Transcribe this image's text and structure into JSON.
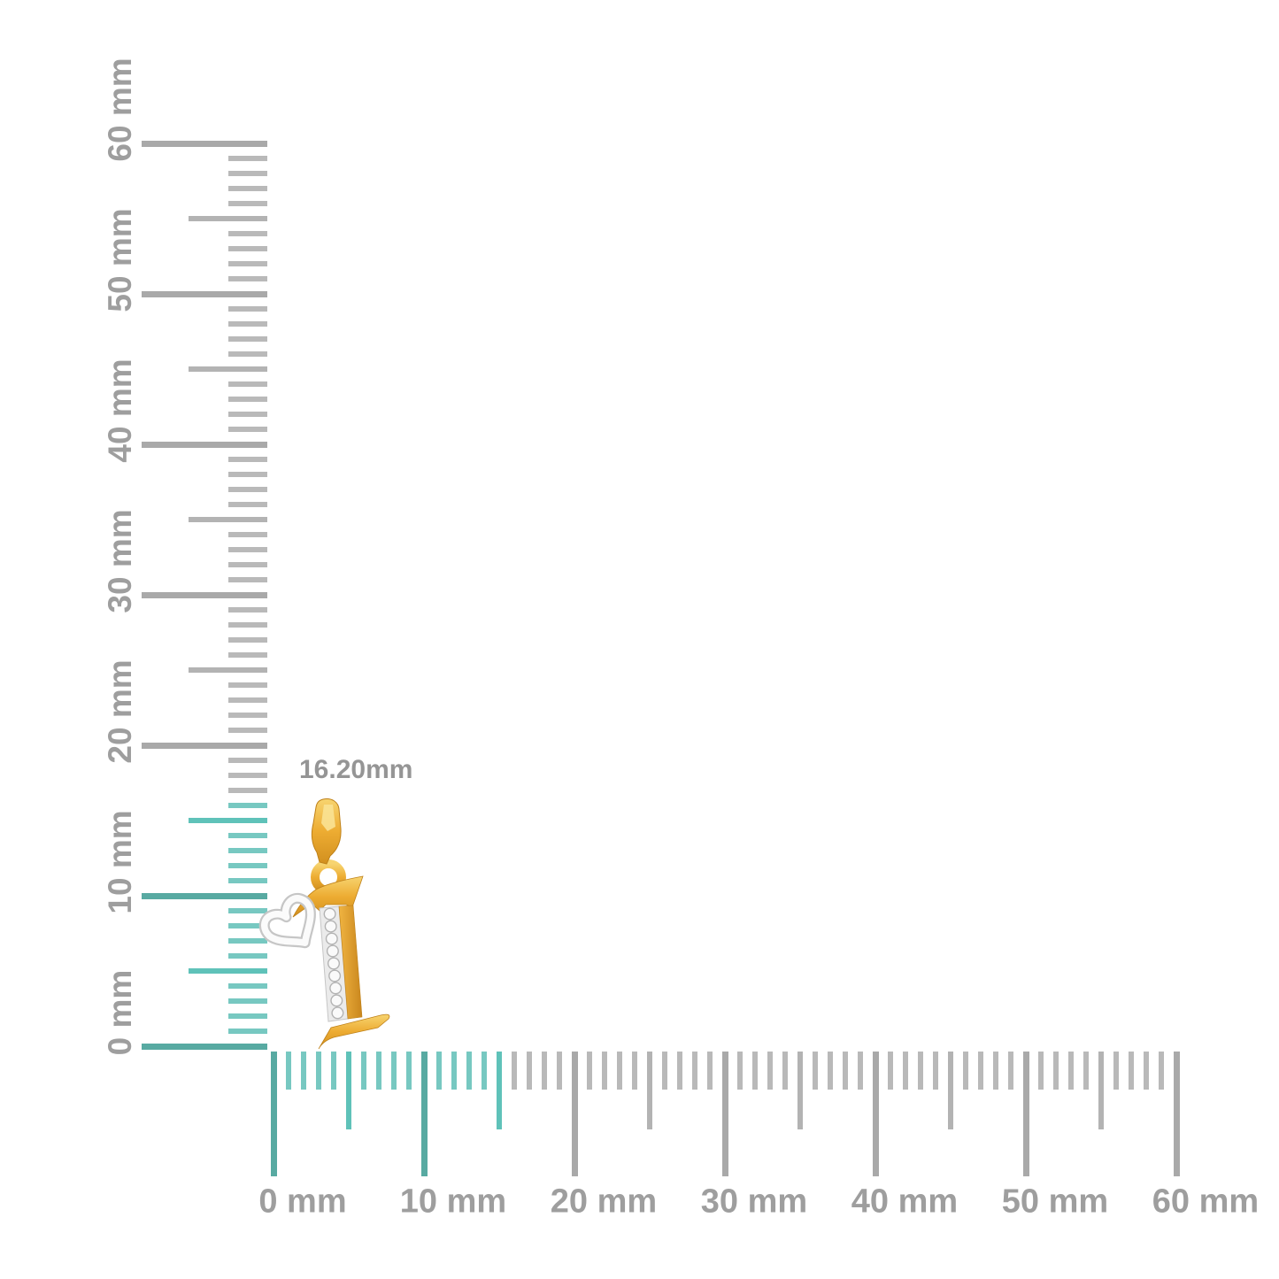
{
  "page": {
    "background": "#ffffff",
    "description": "jewelry pendant size-reference photo over millimeter rulers"
  },
  "measurement": {
    "label": "16.20mm",
    "value_mm": 16.2
  },
  "rulers": {
    "unit": "mm",
    "vertical": {
      "min_mm": 0,
      "max_mm": 60,
      "minor_step_mm": 1,
      "medium_step_mm": 5,
      "major_step_mm": 10,
      "label_step_mm": 10,
      "labels": [
        "0 mm",
        "10 mm",
        "20 mm",
        "30 mm",
        "40 mm",
        "50 mm",
        "60 mm"
      ],
      "highlight_to_mm": 16.2
    },
    "horizontal": {
      "min_mm": 0,
      "max_mm": 60,
      "minor_step_mm": 1,
      "medium_step_mm": 5,
      "major_step_mm": 10,
      "label_step_mm": 10,
      "labels": [
        "0 mm",
        "10 mm",
        "20 mm",
        "30 mm",
        "40 mm",
        "50 mm",
        "60 mm"
      ],
      "highlight_to_mm": 15.5
    }
  },
  "pendant": {
    "name": "yellow-gold initial-I pendant with diamond pave stem and white-gold heart accent"
  },
  "colors": {
    "teal_major": "#58aaa2",
    "teal_medium": "#5fc2b9",
    "teal_minor": "#77c8c1",
    "gray_major": "#a9a9a9",
    "gray_medium": "#b3b3b3",
    "gray_minor": "#b9b9b9",
    "label": "#9e9e9e",
    "measurement_label": "#959595",
    "gold": "#eca930",
    "gold_light": "#f7d470",
    "gold_dark": "#c9861d",
    "diamond": "#fafafa",
    "white_gold": "#fbfbfb",
    "heart_edge": "#c6c6c6"
  }
}
